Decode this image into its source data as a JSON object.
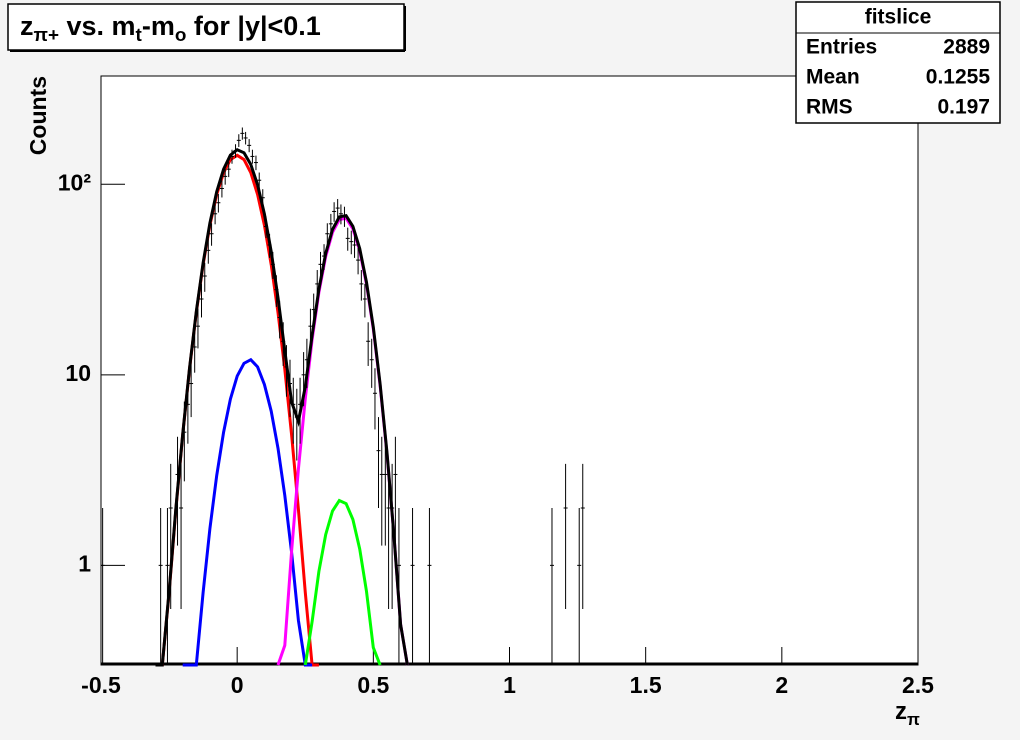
{
  "chart_data": {
    "type": "errorbar",
    "title": [
      {
        "text": "z"
      },
      {
        "text": "π+",
        "sub": true
      },
      {
        "text": " vs. m"
      },
      {
        "text": "t",
        "sub": true
      },
      {
        "text": "-m"
      },
      {
        "text": "o",
        "sub": true
      },
      {
        "text": " for |y|<0.1"
      }
    ],
    "x_label": [
      {
        "text": "z"
      },
      {
        "text": "π",
        "sub": true
      }
    ],
    "y_label": "Counts",
    "xlim": [
      -0.5,
      2.5
    ],
    "xticks": [
      -0.5,
      0,
      0.5,
      1,
      1.5,
      2,
      2.5
    ],
    "ylim": [
      0.3,
      370
    ],
    "yticks": [
      1,
      10,
      {
        "value": 100,
        "label": "10²"
      }
    ],
    "log_y": true,
    "color": "#000000",
    "x": [
      -0.494,
      -0.281,
      -0.256,
      -0.244,
      -0.219,
      -0.206,
      -0.194,
      -0.181,
      -0.169,
      -0.156,
      -0.144,
      -0.131,
      -0.119,
      -0.106,
      -0.094,
      -0.081,
      -0.069,
      -0.056,
      -0.044,
      -0.031,
      -0.019,
      -0.006,
      0.006,
      0.019,
      0.031,
      0.044,
      0.056,
      0.069,
      0.081,
      0.094,
      0.106,
      0.119,
      0.131,
      0.144,
      0.156,
      0.169,
      0.181,
      0.194,
      0.206,
      0.219,
      0.231,
      0.244,
      0.256,
      0.269,
      0.281,
      0.294,
      0.306,
      0.319,
      0.331,
      0.344,
      0.356,
      0.369,
      0.381,
      0.394,
      0.406,
      0.419,
      0.431,
      0.444,
      0.456,
      0.469,
      0.481,
      0.494,
      0.506,
      0.519,
      0.531,
      0.544,
      0.556,
      0.569,
      0.581,
      0.594,
      0.644,
      0.706,
      1.156,
      1.206,
      1.256,
      1.269
    ],
    "values": [
      1,
      1,
      1,
      2,
      3,
      2,
      5,
      7,
      9,
      14,
      18,
      25,
      33,
      45,
      55,
      70,
      80,
      95,
      110,
      120,
      140,
      150,
      170,
      185,
      175,
      160,
      140,
      130,
      105,
      85,
      60,
      48,
      38,
      28,
      20,
      15,
      11,
      9,
      7,
      6,
      7,
      10,
      12,
      18,
      22,
      30,
      38,
      42,
      55,
      62,
      72,
      75,
      70,
      68,
      52,
      50,
      48,
      40,
      30,
      25,
      15,
      12,
      8,
      4,
      3,
      3,
      2,
      2,
      3,
      1,
      1,
      1,
      1,
      2,
      1,
      2
    ],
    "errors": [
      1,
      1,
      1,
      1.41,
      1.73,
      1.41,
      2.24,
      2.65,
      3,
      3.74,
      4.24,
      5,
      5.74,
      6.71,
      7.42,
      8.37,
      8.94,
      9.75,
      10.49,
      10.95,
      11.83,
      12.25,
      13.04,
      13.6,
      13.23,
      12.65,
      11.83,
      11.4,
      10.25,
      9.22,
      7.75,
      6.93,
      6.16,
      5.29,
      4.47,
      3.87,
      3.32,
      3,
      2.65,
      2.45,
      2.65,
      3.16,
      3.46,
      4.24,
      4.69,
      5.48,
      6.16,
      6.48,
      7.42,
      7.87,
      8.49,
      8.66,
      8.37,
      8.25,
      7.21,
      7.07,
      6.93,
      6.32,
      5.48,
      5,
      3.87,
      3.46,
      2.83,
      2,
      1.73,
      1.73,
      1.41,
      1.41,
      1.73,
      1,
      1,
      1,
      1,
      1.41,
      1,
      1.41
    ],
    "fits": [
      {
        "color": "#ff0000",
        "x": [
          -0.3,
          -0.275,
          -0.25,
          -0.225,
          -0.2,
          -0.175,
          -0.15,
          -0.125,
          -0.1,
          -0.075,
          -0.05,
          -0.025,
          0,
          0.025,
          0.05,
          0.075,
          0.1,
          0.125,
          0.15,
          0.175,
          0.2,
          0.225,
          0.25,
          0.275,
          0.3
        ],
        "values": [
          0.071,
          0.238,
          0.72,
          1.97,
          4.84,
          10.7,
          21.2,
          37.9,
          61,
          88.3,
          115,
          134.7,
          142,
          134.7,
          115,
          88.3,
          61,
          37.9,
          21.2,
          10.7,
          4.84,
          1.97,
          0.72,
          0.238,
          0.071
        ]
      },
      {
        "color": "#0000ff",
        "x": [
          -0.2,
          -0.175,
          -0.15,
          -0.125,
          -0.1,
          -0.075,
          -0.05,
          -0.025,
          0,
          0.025,
          0.05,
          0.075,
          0.1,
          0.125,
          0.15,
          0.175,
          0.2,
          0.225,
          0.25,
          0.275
        ],
        "values": [
          0.035,
          0.109,
          0.3,
          0.72,
          1.56,
          2.96,
          5,
          7.46,
          9.85,
          11.5,
          12,
          11,
          8.9,
          6.45,
          4.12,
          2.33,
          1.17,
          0.515,
          0.203,
          0.07
        ]
      },
      {
        "color": "#ff00ff",
        "x": [
          0.15,
          0.175,
          0.2,
          0.225,
          0.25,
          0.275,
          0.3,
          0.325,
          0.35,
          0.375,
          0.4,
          0.425,
          0.45,
          0.475,
          0.5,
          0.525,
          0.55,
          0.575,
          0.6,
          0.625
        ],
        "values": [
          0.108,
          0.38,
          1.19,
          3.2,
          7.5,
          15.3,
          27.1,
          41.8,
          56,
          65.3,
          66.3,
          58.4,
          44.8,
          29.9,
          17.4,
          8.8,
          3.84,
          1.47,
          0.49,
          0.142
        ]
      },
      {
        "color": "#00ff00",
        "x": [
          0.25,
          0.275,
          0.3,
          0.325,
          0.35,
          0.375,
          0.4,
          0.425,
          0.45,
          0.475,
          0.5,
          0.525
        ],
        "values": [
          0.236,
          0.506,
          0.93,
          1.45,
          1.93,
          2.19,
          2.11,
          1.74,
          1.22,
          0.73,
          0.37,
          0.16
        ]
      },
      {
        "color": "#000000",
        "x": [
          -0.3,
          -0.275,
          -0.25,
          -0.225,
          -0.2,
          -0.175,
          -0.15,
          -0.125,
          -0.1,
          -0.075,
          -0.05,
          -0.025,
          0,
          0.025,
          0.05,
          0.075,
          0.1,
          0.125,
          0.15,
          0.175,
          0.2,
          0.225,
          0.25,
          0.275,
          0.3,
          0.325,
          0.35,
          0.375,
          0.4,
          0.425,
          0.45,
          0.475,
          0.5,
          0.525,
          0.55,
          0.575,
          0.6,
          0.625
        ],
        "values": [
          0.071,
          0.238,
          0.73,
          2.0,
          4.88,
          10.8,
          21.5,
          38.6,
          62.6,
          91.3,
          120,
          142.2,
          151.9,
          146.2,
          127,
          99.3,
          69.9,
          44.4,
          25.4,
          13.4,
          7.2,
          5.7,
          8.66,
          16.1,
          28.1,
          43.3,
          57.9,
          67.5,
          68.4,
          60.1,
          46,
          30.6,
          17.8,
          8.96,
          3.9,
          1.47,
          0.49,
          0.142
        ]
      }
    ],
    "stats": {
      "title": "fitslice",
      "rows": [
        [
          "Entries",
          2889
        ],
        [
          "Mean",
          0.1255
        ],
        [
          "RMS",
          0.197
        ]
      ]
    }
  }
}
